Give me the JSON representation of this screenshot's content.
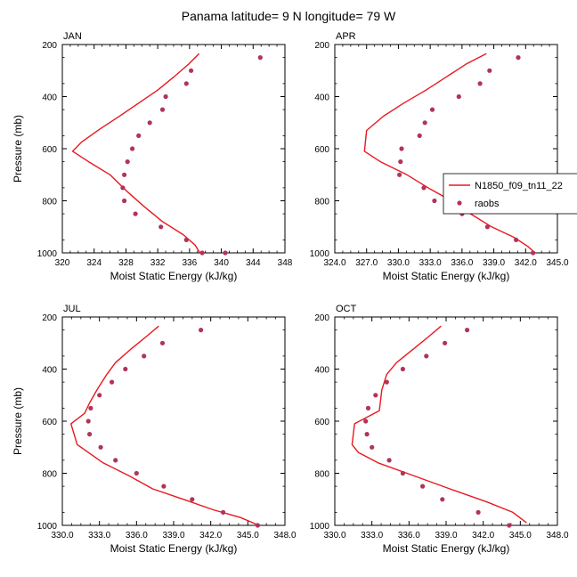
{
  "figure": {
    "title": "Panama  latitude= 9 N longitude= 79 W"
  },
  "legend": {
    "model_label": "N1850_f09_tn11_22",
    "obs_label": "raobs",
    "placement": "right of APR panel"
  },
  "colors": {
    "model": "#e8181f",
    "obs": "#b0345a",
    "axis": "#000000"
  },
  "chart_data": [
    {
      "type": "line",
      "panel": "JAN",
      "title": "JAN",
      "xlabel": "Moist Static Energy (kJ/kg)",
      "ylabel": "Pressure (mb)",
      "xlim": [
        320,
        348
      ],
      "ylim": [
        1000,
        200
      ],
      "xticks": [
        320,
        324,
        328,
        332,
        336,
        340,
        344,
        348
      ],
      "xtick_labels": [
        "320",
        "324",
        "328",
        "332",
        "336",
        "340",
        "344",
        "348"
      ],
      "yticks": [
        200,
        400,
        600,
        800,
        1000
      ],
      "ytick_labels": [
        "200",
        "400",
        "600",
        "800",
        "1000"
      ],
      "series": [
        {
          "name": "N1850_f09_tn11_22",
          "kind": "line",
          "x": [
            337.2,
            335.9,
            334.0,
            332.0,
            329.6,
            327.2,
            324.7,
            322.4,
            321.3,
            323.3,
            326.0,
            328.0,
            330.2,
            332.6,
            335.2,
            336.7,
            337.3
          ],
          "y": [
            235,
            275,
            325,
            375,
            425,
            475,
            525,
            575,
            610,
            650,
            700,
            760,
            820,
            880,
            930,
            970,
            1000
          ]
        },
        {
          "name": "raobs",
          "kind": "scatter",
          "x": [
            344.9,
            336.2,
            335.6,
            333.0,
            332.6,
            331.0,
            329.6,
            328.8,
            328.2,
            327.8,
            327.6,
            327.8,
            329.2,
            332.4,
            335.6,
            337.6,
            340.5
          ],
          "y": [
            250,
            300,
            350,
            400,
            450,
            500,
            550,
            600,
            650,
            700,
            750,
            800,
            850,
            900,
            950,
            1000,
            1000
          ]
        }
      ]
    },
    {
      "type": "line",
      "panel": "APR",
      "title": "APR",
      "xlabel": "Moist Static Energy (kJ/kg)",
      "ylabel": "",
      "xlim": [
        324,
        345
      ],
      "ylim": [
        1000,
        200
      ],
      "xticks": [
        324,
        327,
        330,
        333,
        336,
        339,
        342,
        345
      ],
      "xtick_labels": [
        "324.0",
        "327.0",
        "330.0",
        "333.0",
        "336.0",
        "339.0",
        "342.0",
        "345.0"
      ],
      "yticks": [
        200,
        400,
        600,
        800,
        1000
      ],
      "ytick_labels": [
        "200",
        "400",
        "600",
        "800",
        "1000"
      ],
      "series": [
        {
          "name": "N1850_f09_tn11_22",
          "kind": "line",
          "x": [
            338.3,
            336.4,
            334.5,
            332.6,
            330.5,
            328.6,
            327.0,
            326.8,
            328.3,
            330.8,
            333.0,
            335.0,
            336.8,
            338.8,
            340.9,
            342.2,
            342.9
          ],
          "y": [
            235,
            275,
            325,
            375,
            425,
            475,
            530,
            610,
            650,
            700,
            755,
            800,
            850,
            900,
            940,
            975,
            1000
          ]
        },
        {
          "name": "raobs",
          "kind": "scatter",
          "x": [
            341.3,
            338.6,
            337.7,
            335.7,
            333.2,
            332.5,
            332.0,
            330.3,
            330.2,
            330.1,
            332.4,
            333.4,
            336.0,
            338.4,
            341.1,
            342.7
          ],
          "y": [
            250,
            300,
            350,
            400,
            450,
            500,
            550,
            600,
            650,
            700,
            750,
            800,
            850,
            900,
            950,
            1000
          ]
        }
      ]
    },
    {
      "type": "line",
      "panel": "JUL",
      "title": "JUL",
      "xlabel": "Moist Static Energy (kJ/kg)",
      "ylabel": "Pressure (mb)",
      "xlim": [
        330,
        348
      ],
      "ylim": [
        1000,
        200
      ],
      "xticks": [
        330,
        333,
        336,
        339,
        342,
        345,
        348
      ],
      "xtick_labels": [
        "330.0",
        "333.0",
        "336.0",
        "339.0",
        "342.0",
        "345.0",
        "348.0"
      ],
      "yticks": [
        200,
        400,
        600,
        800,
        1000
      ],
      "ytick_labels": [
        "200",
        "400",
        "600",
        "800",
        "1000"
      ],
      "series": [
        {
          "name": "N1850_f09_tn11_22",
          "kind": "line",
          "x": [
            337.8,
            336.8,
            335.5,
            334.3,
            333.6,
            332.8,
            332.2,
            331.8,
            330.7,
            331.2,
            333.3,
            335.4,
            337.3,
            339.8,
            342.2,
            344.4,
            345.9
          ],
          "y": [
            235,
            275,
            325,
            375,
            420,
            480,
            530,
            570,
            610,
            690,
            760,
            810,
            860,
            900,
            940,
            970,
            1000
          ]
        },
        {
          "name": "raobs",
          "kind": "scatter",
          "x": [
            341.2,
            338.1,
            336.6,
            335.1,
            334.0,
            333.0,
            332.3,
            332.1,
            332.2,
            333.1,
            334.3,
            336.0,
            338.2,
            340.5,
            343.0,
            345.8
          ],
          "y": [
            250,
            300,
            350,
            400,
            450,
            500,
            550,
            600,
            650,
            700,
            750,
            800,
            850,
            900,
            950,
            1000
          ]
        }
      ]
    },
    {
      "type": "line",
      "panel": "OCT",
      "title": "OCT",
      "xlabel": "Moist Static Energy (kJ/kg)",
      "ylabel": "",
      "xlim": [
        330,
        348
      ],
      "ylim": [
        1000,
        200
      ],
      "xticks": [
        330,
        333,
        336,
        339,
        342,
        345,
        348
      ],
      "xtick_labels": [
        "330.0",
        "333.0",
        "336.0",
        "339.0",
        "342.0",
        "345.0",
        "348.0"
      ],
      "yticks": [
        200,
        400,
        600,
        800,
        1000
      ],
      "ytick_labels": [
        "200",
        "400",
        "600",
        "800",
        "1000"
      ],
      "series": [
        {
          "name": "N1850_f09_tn11_22",
          "kind": "line",
          "x": [
            338.6,
            337.6,
            336.3,
            335.0,
            334.2,
            333.8,
            333.6,
            331.6,
            331.4,
            331.9,
            333.5,
            336.4,
            339.3,
            342.3,
            344.4,
            345.5
          ],
          "y": [
            235,
            275,
            325,
            375,
            420,
            480,
            560,
            610,
            690,
            720,
            760,
            810,
            860,
            910,
            950,
            990
          ]
        },
        {
          "name": "raobs",
          "kind": "scatter",
          "x": [
            340.7,
            338.9,
            337.4,
            335.5,
            334.2,
            333.3,
            332.7,
            332.5,
            332.6,
            333.0,
            334.4,
            335.5,
            337.1,
            338.7,
            341.6,
            344.1
          ],
          "y": [
            250,
            300,
            350,
            400,
            450,
            500,
            550,
            600,
            650,
            700,
            750,
            800,
            850,
            900,
            950,
            1000
          ]
        }
      ]
    }
  ]
}
